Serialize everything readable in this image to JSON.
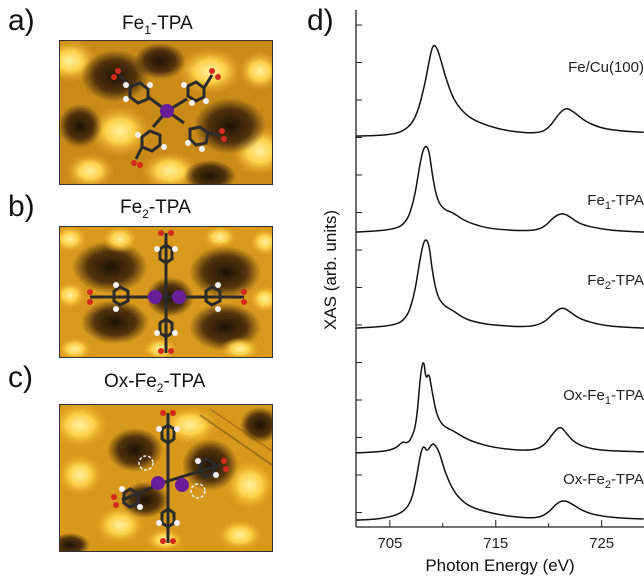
{
  "figure": {
    "panel_a": {
      "letter": "a)",
      "title_prefix": "Fe",
      "title_sub": "1",
      "title_suffix": "-TPA"
    },
    "panel_b": {
      "letter": "b)",
      "title_prefix": "Fe",
      "title_sub": "2",
      "title_suffix": "-TPA"
    },
    "panel_c": {
      "letter": "c)",
      "title_prefix": "Ox-Fe",
      "title_sub": "2",
      "title_suffix": "-TPA"
    },
    "panel_d": {
      "letter": "d)"
    },
    "stm_colors": {
      "dark": "#2a1a08",
      "mid": "#b8730e",
      "bright": "#ffd24a",
      "highlight": "#fff0a0",
      "iron": "#6a1d9a",
      "carbon": "#2b2b2b",
      "oxygen": "#d42a1f",
      "hydrogen": "#f2f2f2"
    }
  },
  "chart_data": {
    "type": "line",
    "xlabel": "Photon Energy (eV)",
    "ylabel": "XAS (arb. units)",
    "xlim": [
      701.8,
      729
    ],
    "xticks": [
      705,
      715,
      725
    ],
    "series": [
      {
        "name": "Fe/Cu(100)",
        "label_prefix": "Fe/Cu(100)",
        "label_sub": "",
        "label_suffix": "",
        "baseline": 4.0,
        "points": [
          [
            701.8,
            0.02
          ],
          [
            705,
            0.03
          ],
          [
            706.5,
            0.08
          ],
          [
            707.5,
            0.22
          ],
          [
            708.3,
            0.55
          ],
          [
            708.9,
            0.92
          ],
          [
            709.2,
            0.98
          ],
          [
            709.6,
            0.9
          ],
          [
            710.2,
            0.65
          ],
          [
            711,
            0.4
          ],
          [
            712,
            0.26
          ],
          [
            713,
            0.18
          ],
          [
            715,
            0.1
          ],
          [
            717,
            0.06
          ],
          [
            719,
            0.05
          ],
          [
            720,
            0.1
          ],
          [
            721,
            0.26
          ],
          [
            721.7,
            0.32
          ],
          [
            722.5,
            0.26
          ],
          [
            723.5,
            0.17
          ],
          [
            725,
            0.1
          ],
          [
            727,
            0.07
          ],
          [
            729,
            0.06
          ]
        ]
      },
      {
        "name": "Fe1-TPA",
        "label_prefix": "Fe",
        "label_sub": "1",
        "label_suffix": "-TPA",
        "baseline": 3.0,
        "points": [
          [
            701.8,
            0.02
          ],
          [
            705,
            0.04
          ],
          [
            706.5,
            0.1
          ],
          [
            707.3,
            0.35
          ],
          [
            707.9,
            0.78
          ],
          [
            708.3,
            0.93
          ],
          [
            708.7,
            0.88
          ],
          [
            709,
            0.62
          ],
          [
            709.4,
            0.38
          ],
          [
            710,
            0.26
          ],
          [
            711,
            0.22
          ],
          [
            712,
            0.14
          ],
          [
            713.5,
            0.08
          ],
          [
            715,
            0.05
          ],
          [
            718,
            0.03
          ],
          [
            719.5,
            0.06
          ],
          [
            720.5,
            0.18
          ],
          [
            721.3,
            0.22
          ],
          [
            722,
            0.18
          ],
          [
            723,
            0.1
          ],
          [
            725,
            0.05
          ],
          [
            727,
            0.03
          ],
          [
            729,
            0.02
          ]
        ]
      },
      {
        "name": "Fe2-TPA",
        "label_prefix": "Fe",
        "label_sub": "2",
        "label_suffix": "-TPA",
        "baseline": 2.0,
        "points": [
          [
            701.8,
            0.02
          ],
          [
            705,
            0.04
          ],
          [
            706.5,
            0.1
          ],
          [
            707.3,
            0.35
          ],
          [
            707.9,
            0.78
          ],
          [
            708.3,
            0.96
          ],
          [
            708.7,
            0.9
          ],
          [
            709,
            0.62
          ],
          [
            709.4,
            0.38
          ],
          [
            710,
            0.26
          ],
          [
            711,
            0.2
          ],
          [
            712,
            0.12
          ],
          [
            713.5,
            0.07
          ],
          [
            715,
            0.05
          ],
          [
            718,
            0.03
          ],
          [
            719.5,
            0.07
          ],
          [
            720.5,
            0.18
          ],
          [
            721.3,
            0.24
          ],
          [
            722,
            0.19
          ],
          [
            723,
            0.11
          ],
          [
            725,
            0.05
          ],
          [
            727,
            0.03
          ],
          [
            729,
            0.02
          ]
        ]
      },
      {
        "name": "Ox-Fe1-TPA",
        "label_prefix": "Ox-Fe",
        "label_sub": "1",
        "label_suffix": "-TPA",
        "baseline": 0.7,
        "points": [
          [
            701.8,
            0.02
          ],
          [
            704,
            0.03
          ],
          [
            705.5,
            0.06
          ],
          [
            706.2,
            0.14
          ],
          [
            706.6,
            0.12
          ],
          [
            707,
            0.16
          ],
          [
            707.5,
            0.32
          ],
          [
            707.9,
            0.86
          ],
          [
            708.2,
            1.0
          ],
          [
            708.4,
            0.78
          ],
          [
            708.7,
            0.86
          ],
          [
            709,
            0.65
          ],
          [
            709.4,
            0.42
          ],
          [
            710,
            0.3
          ],
          [
            711,
            0.25
          ],
          [
            712,
            0.18
          ],
          [
            713,
            0.13
          ],
          [
            715,
            0.07
          ],
          [
            718,
            0.04
          ],
          [
            719.5,
            0.08
          ],
          [
            720.5,
            0.24
          ],
          [
            721.1,
            0.3
          ],
          [
            721.7,
            0.22
          ],
          [
            722.5,
            0.12
          ],
          [
            724,
            0.06
          ],
          [
            726,
            0.04
          ],
          [
            729,
            0.03
          ]
        ]
      },
      {
        "name": "Ox-Fe2-TPA",
        "label_prefix": "Ox-Fe",
        "label_sub": "2",
        "label_suffix": "-TPA",
        "baseline": 0.0,
        "points": [
          [
            701.8,
            0.02
          ],
          [
            704,
            0.03
          ],
          [
            706,
            0.08
          ],
          [
            707,
            0.2
          ],
          [
            707.5,
            0.45
          ],
          [
            707.9,
            0.72
          ],
          [
            708.2,
            0.8
          ],
          [
            708.5,
            0.73
          ],
          [
            709,
            0.82
          ],
          [
            709.3,
            0.8
          ],
          [
            709.7,
            0.72
          ],
          [
            710.2,
            0.52
          ],
          [
            711,
            0.32
          ],
          [
            712,
            0.2
          ],
          [
            713,
            0.14
          ],
          [
            715,
            0.08
          ],
          [
            717,
            0.05
          ],
          [
            719,
            0.04
          ],
          [
            720,
            0.1
          ],
          [
            720.8,
            0.2
          ],
          [
            721.5,
            0.23
          ],
          [
            722.3,
            0.18
          ],
          [
            723.5,
            0.1
          ],
          [
            725,
            0.06
          ],
          [
            727,
            0.04
          ],
          [
            729,
            0.03
          ]
        ]
      }
    ]
  }
}
